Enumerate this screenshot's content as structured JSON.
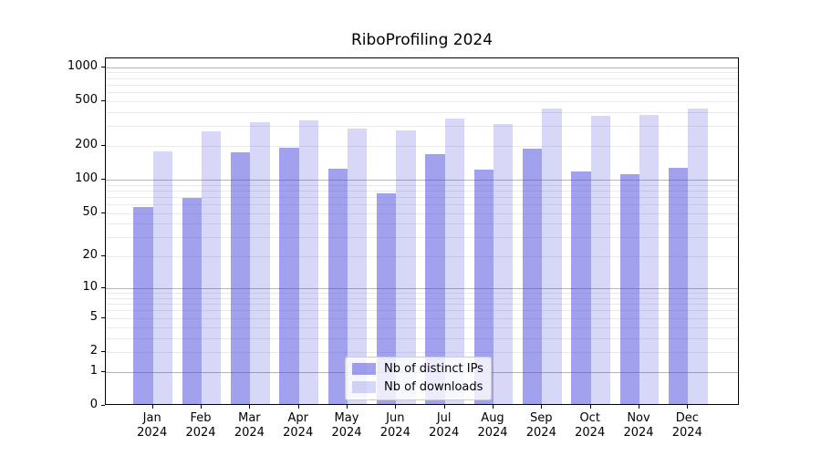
{
  "chart_data": {
    "type": "bar",
    "title": "RiboProfiling 2024",
    "xlabel": "",
    "ylabel": "",
    "y_scale": "log1p",
    "categories": [
      "Jan",
      "Feb",
      "Mar",
      "Apr",
      "May",
      "Jun",
      "Jul",
      "Aug",
      "Sep",
      "Oct",
      "Nov",
      "Dec"
    ],
    "category_year": "2024",
    "series": [
      {
        "name": "Nb of distinct IPs",
        "color": "rgba(68,68,221,0.50)",
        "values": [
          55,
          66,
          170,
          184,
          121,
          73,
          162,
          119,
          181,
          114,
          108,
          122
        ]
      },
      {
        "name": "Nb of downloads",
        "color": "rgba(68,68,221,0.21)",
        "values": [
          173,
          259,
          312,
          322,
          276,
          264,
          336,
          301,
          415,
          356,
          363,
          415
        ]
      }
    ],
    "y_ticks": [
      0,
      1,
      2,
      5,
      10,
      20,
      50,
      100,
      200,
      500,
      1000
    ],
    "ylim": [
      0,
      1200
    ],
    "grid": true,
    "legend_position": "lower center"
  }
}
